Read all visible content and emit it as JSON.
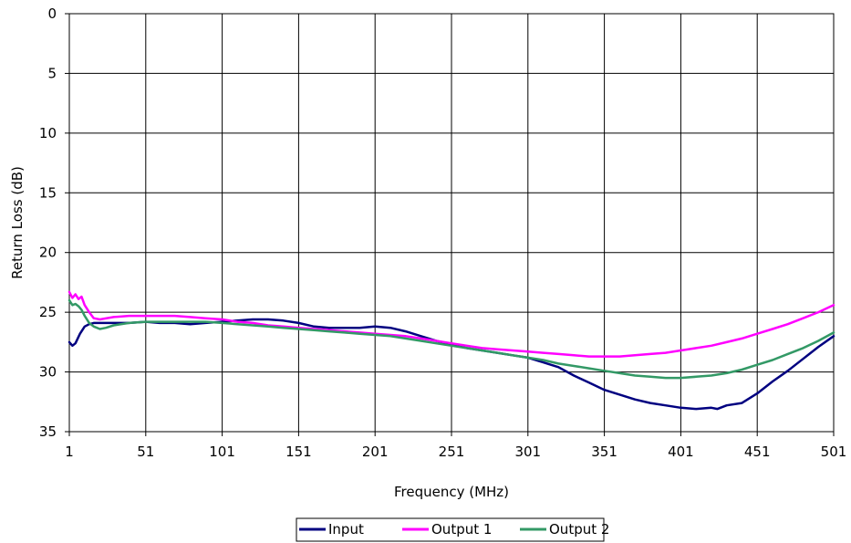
{
  "chart_data": {
    "type": "line",
    "title": "",
    "xlabel": "Frequency (MHz)",
    "ylabel": "Return Loss (dB)",
    "xlim": [
      1,
      501
    ],
    "ylim": [
      0,
      35
    ],
    "y_inverted": true,
    "grid": true,
    "legend_position": "bottom",
    "x_ticks": [
      "1",
      "51",
      "101",
      "151",
      "201",
      "251",
      "301",
      "351",
      "401",
      "451",
      "501"
    ],
    "y_ticks": [
      "0",
      "5",
      "10",
      "15",
      "20",
      "25",
      "30",
      "35"
    ],
    "series": [
      {
        "name": "Input",
        "color": "#000080",
        "x": [
          1,
          3,
          5,
          8,
          11,
          14,
          17,
          21,
          30,
          40,
          51,
          60,
          70,
          80,
          90,
          101,
          111,
          121,
          131,
          141,
          151,
          161,
          171,
          181,
          191,
          201,
          211,
          221,
          231,
          241,
          251,
          261,
          271,
          281,
          291,
          301,
          311,
          321,
          331,
          341,
          351,
          361,
          371,
          381,
          391,
          401,
          411,
          421,
          425,
          431,
          441,
          451,
          461,
          471,
          481,
          491,
          501
        ],
        "y": [
          27.5,
          27.8,
          27.6,
          26.8,
          26.2,
          26.0,
          25.9,
          25.9,
          25.9,
          25.9,
          25.8,
          25.9,
          25.9,
          26.0,
          25.9,
          25.8,
          25.7,
          25.6,
          25.6,
          25.7,
          25.9,
          26.2,
          26.3,
          26.3,
          26.3,
          26.2,
          26.3,
          26.6,
          27.0,
          27.4,
          27.7,
          28.0,
          28.2,
          28.4,
          28.6,
          28.8,
          29.2,
          29.6,
          30.3,
          30.9,
          31.5,
          31.9,
          32.3,
          32.6,
          32.8,
          33.0,
          33.1,
          33.0,
          33.1,
          32.8,
          32.6,
          31.8,
          30.8,
          29.9,
          28.9,
          27.9,
          27.0
        ]
      },
      {
        "name": "Output 1",
        "color": "#FF00FF",
        "x": [
          1,
          3,
          5,
          7,
          9,
          11,
          14,
          17,
          21,
          30,
          40,
          51,
          60,
          70,
          80,
          90,
          101,
          111,
          121,
          131,
          141,
          151,
          161,
          171,
          181,
          191,
          201,
          211,
          221,
          231,
          241,
          251,
          261,
          271,
          281,
          291,
          301,
          311,
          321,
          331,
          341,
          351,
          361,
          371,
          381,
          391,
          401,
          411,
          421,
          431,
          441,
          451,
          461,
          471,
          481,
          491,
          501
        ],
        "y": [
          23.3,
          23.8,
          23.5,
          23.9,
          23.7,
          24.4,
          25.0,
          25.5,
          25.6,
          25.4,
          25.3,
          25.3,
          25.3,
          25.3,
          25.4,
          25.5,
          25.6,
          25.8,
          25.9,
          26.1,
          26.2,
          26.3,
          26.4,
          26.5,
          26.6,
          26.7,
          26.8,
          26.9,
          27.0,
          27.2,
          27.4,
          27.6,
          27.8,
          28.0,
          28.1,
          28.2,
          28.3,
          28.4,
          28.5,
          28.6,
          28.7,
          28.7,
          28.7,
          28.6,
          28.5,
          28.4,
          28.2,
          28.0,
          27.8,
          27.5,
          27.2,
          26.8,
          26.4,
          26.0,
          25.5,
          25.0,
          24.4
        ]
      },
      {
        "name": "Output 2",
        "color": "#339966",
        "x": [
          1,
          3,
          5,
          7,
          9,
          11,
          14,
          17,
          21,
          25,
          30,
          40,
          51,
          60,
          70,
          80,
          90,
          101,
          111,
          121,
          131,
          141,
          151,
          161,
          171,
          181,
          191,
          201,
          211,
          221,
          231,
          241,
          251,
          261,
          271,
          281,
          291,
          301,
          311,
          321,
          331,
          341,
          351,
          361,
          371,
          381,
          391,
          401,
          411,
          421,
          431,
          441,
          451,
          461,
          471,
          481,
          491,
          501
        ],
        "y": [
          24.0,
          24.4,
          24.3,
          24.5,
          24.8,
          25.3,
          25.9,
          26.2,
          26.4,
          26.3,
          26.1,
          25.9,
          25.8,
          25.8,
          25.8,
          25.8,
          25.8,
          25.9,
          26.0,
          26.1,
          26.2,
          26.3,
          26.4,
          26.5,
          26.6,
          26.7,
          26.8,
          26.9,
          27.0,
          27.2,
          27.4,
          27.6,
          27.8,
          28.0,
          28.2,
          28.4,
          28.6,
          28.8,
          29.0,
          29.3,
          29.5,
          29.7,
          29.9,
          30.1,
          30.3,
          30.4,
          30.5,
          30.5,
          30.4,
          30.3,
          30.1,
          29.8,
          29.4,
          29.0,
          28.5,
          28.0,
          27.4,
          26.7
        ]
      }
    ]
  }
}
